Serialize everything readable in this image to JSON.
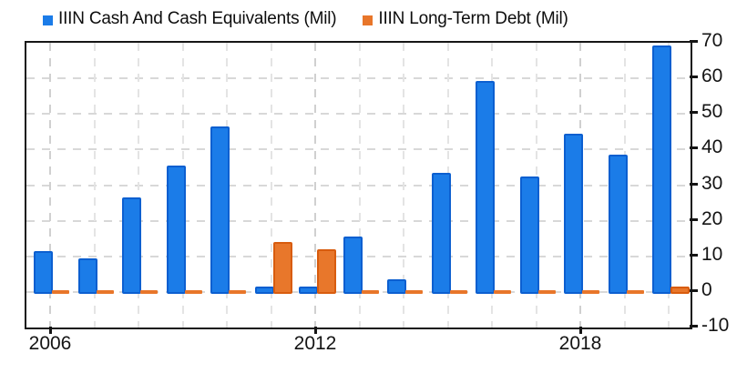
{
  "legend": {
    "items": [
      {
        "label": "IIIN Cash And Cash Equivalents (Mil)",
        "color": "#1b7ce8"
      },
      {
        "label": "IIIN Long-Term Debt (Mil)",
        "color": "#e8762a"
      }
    ]
  },
  "chart_data": {
    "type": "bar",
    "categories": [
      2006,
      2007,
      2008,
      2009,
      2010,
      2011,
      2012,
      2013,
      2014,
      2015,
      2016,
      2017,
      2018,
      2019,
      2020
    ],
    "series": [
      {
        "name": "IIIN Cash And Cash Equivalents (Mil)",
        "color": "#1b7ce8",
        "border_color": "#0c5fd0",
        "values": [
          11,
          9,
          26,
          35,
          46,
          1,
          1,
          15,
          3,
          33,
          58.7,
          32,
          44,
          38,
          68.7
        ]
      },
      {
        "name": "IIIN Long-Term Debt (Mil)",
        "color": "#e8762a",
        "border_color": "#d85c0e",
        "values": [
          0,
          0,
          0,
          0,
          0,
          13.5,
          11.5,
          0,
          0,
          0,
          0,
          0,
          0,
          0,
          1
        ]
      }
    ],
    "title": "",
    "xlabel": "",
    "ylabel": "",
    "ylim": [
      -10,
      70
    ],
    "yticks": [
      -10,
      0,
      10,
      20,
      30,
      40,
      50,
      60,
      70
    ],
    "xtick_labels": [
      "2006",
      "2012",
      "2018"
    ],
    "xtick_years": [
      2006,
      2012,
      2018
    ],
    "grid": true,
    "legend_position": "top",
    "background_color": "#ffffff",
    "axis_color": "#141414",
    "gridline_color": "#d8d8d8"
  }
}
